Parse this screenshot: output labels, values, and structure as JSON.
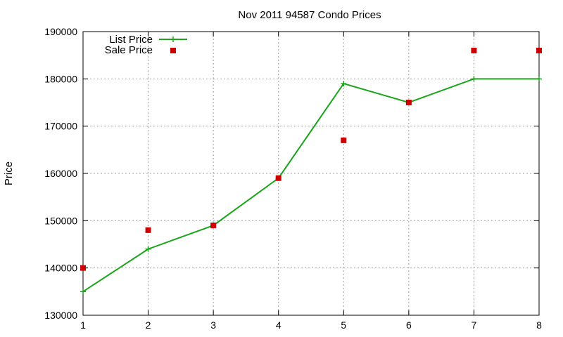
{
  "chart_data": {
    "type": "line",
    "title": "Nov 2011 94587 Condo Prices",
    "xlabel": "",
    "ylabel": "Price",
    "xlim": [
      1,
      8
    ],
    "ylim": [
      130000,
      190000
    ],
    "x_ticks": [
      "1",
      "2",
      "3",
      "4",
      "5",
      "6",
      "7",
      "8"
    ],
    "y_ticks": [
      "130000",
      "140000",
      "150000",
      "160000",
      "170000",
      "180000",
      "190000"
    ],
    "grid": true,
    "legend_position": "top-left",
    "series": [
      {
        "name": "List Price",
        "style": "line-with-plus-markers",
        "color": "#1aa51a",
        "x": [
          1,
          2,
          3,
          4,
          5,
          6,
          7,
          8
        ],
        "y": [
          135000,
          144000,
          149000,
          159000,
          179000,
          175000,
          180000,
          180000
        ]
      },
      {
        "name": "Sale Price",
        "style": "square-markers",
        "color": "#cc0000",
        "x": [
          1,
          2,
          3,
          4,
          5,
          6,
          7,
          8
        ],
        "y": [
          140000,
          148000,
          149000,
          159000,
          167000,
          175000,
          186000,
          186000
        ]
      }
    ]
  }
}
